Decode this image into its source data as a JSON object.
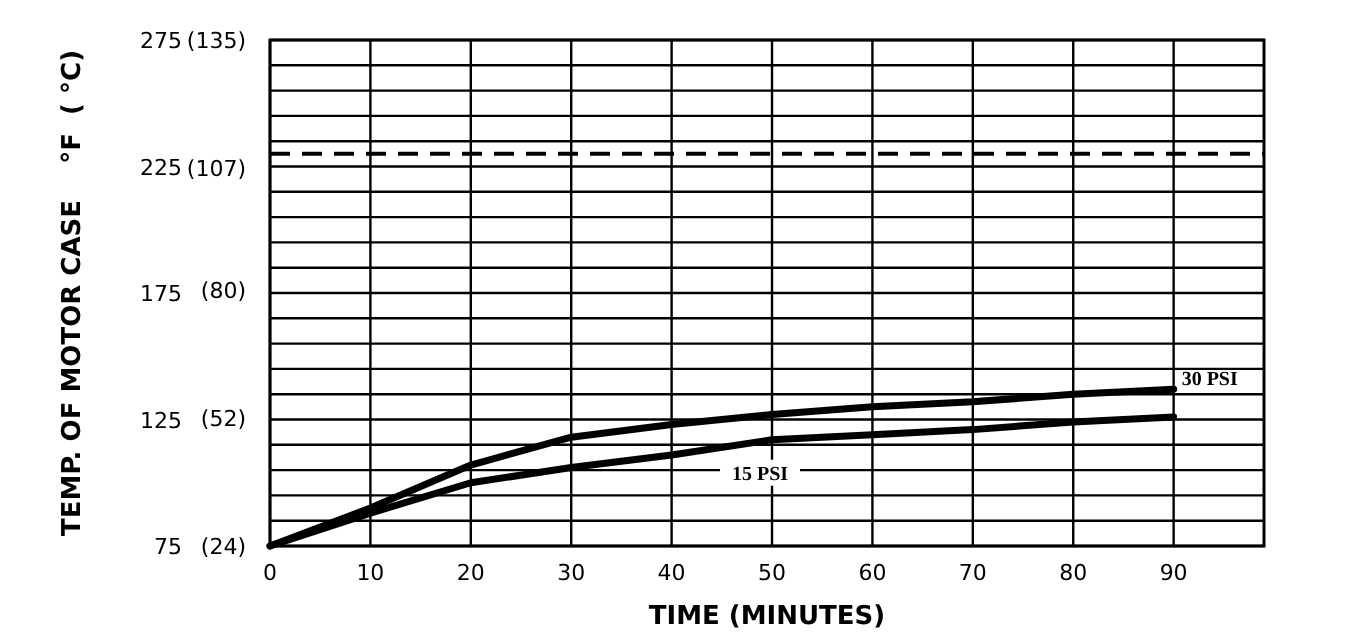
{
  "chart_data": {
    "type": "line",
    "xlabel": "TIME (MINUTES)",
    "ylabel": "TEMP. OF MOTOR CASE    °F  ( °C)",
    "x": [
      0,
      10,
      20,
      30,
      40,
      50,
      60,
      70,
      80,
      90
    ],
    "series": [
      {
        "name": "30 PSI",
        "color": "#000000",
        "values": [
          75,
          90,
          107,
          118,
          123,
          127,
          130,
          132,
          135,
          137
        ]
      },
      {
        "name": "15 PSI",
        "color": "#000000",
        "values": [
          75,
          88,
          100,
          106,
          111,
          117,
          119,
          121,
          124,
          126
        ]
      }
    ],
    "xlim": [
      0,
      99
    ],
    "xticks": [
      0,
      10,
      20,
      30,
      40,
      50,
      60,
      70,
      80,
      90
    ],
    "ylim": [
      75,
      275
    ],
    "y2lim": [
      23.9,
      135
    ],
    "y2ticks": [
      {
        "value": 24,
        "label": "(24)"
      },
      {
        "value": 52,
        "label": "(52)"
      },
      {
        "value": 80,
        "label": "(80)"
      },
      {
        "value": 107,
        "label": "(107)"
      },
      {
        "value": 135,
        "label": "(135)"
      }
    ],
    "yticks": [
      {
        "value": 75,
        "label": "75"
      },
      {
        "value": 85,
        "label": null
      },
      {
        "value": 95,
        "label": null
      },
      {
        "value": 105,
        "label": null
      },
      {
        "value": 115,
        "label": null
      },
      {
        "value": 125,
        "label": "125"
      },
      {
        "value": 135,
        "label": null
      },
      {
        "value": 145,
        "label": null
      },
      {
        "value": 155,
        "label": null
      },
      {
        "value": 165,
        "label": null
      },
      {
        "value": 175,
        "label": "175"
      },
      {
        "value": 185,
        "label": null
      },
      {
        "value": 195,
        "label": null
      },
      {
        "value": 205,
        "label": null
      },
      {
        "value": 215,
        "label": null
      },
      {
        "value": 225,
        "label": "225"
      },
      {
        "value": 235,
        "label": null
      },
      {
        "value": 245,
        "label": null
      },
      {
        "value": 255,
        "label": null
      },
      {
        "value": 265,
        "label": null
      },
      {
        "value": 275,
        "label": "275"
      }
    ],
    "grid": true,
    "marker": "none",
    "line_style": "solid",
    "ref_lines": [
      {
        "axis": "y",
        "value": 230,
        "line_style": "dashed",
        "color": "#000000"
      }
    ]
  }
}
